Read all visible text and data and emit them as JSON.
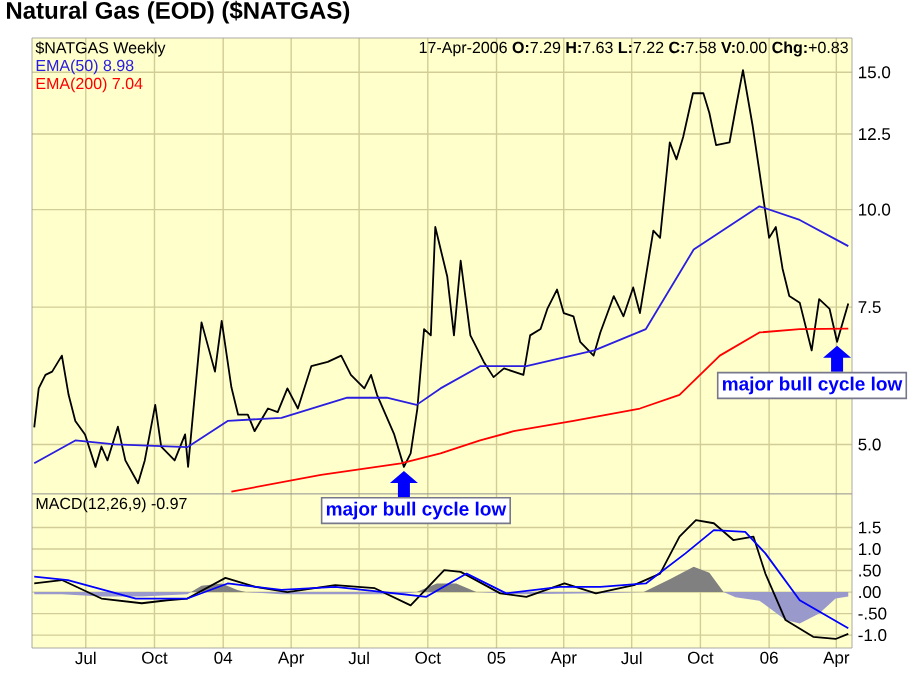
{
  "chart_data": [
    {
      "type": "line",
      "title": "Natural Gas (EOD) ($NATGAS)",
      "log": "y",
      "grid": true,
      "legend": "top left",
      "marker": "none",
      "line_style": "solid",
      "tick_labels": "y",
      "xlim": [
        "2003-04-20",
        "2006-04-22"
      ],
      "ylim": [
        4.32,
        16.6
      ],
      "xticks": [
        {
          "value": "2003-07-01",
          "label": null
        },
        {
          "value": "2003-10-01",
          "label": null
        },
        {
          "value": "2004-01-01",
          "label": null
        },
        {
          "value": "2004-04-01",
          "label": null
        },
        {
          "value": "2004-07-01",
          "label": null
        },
        {
          "value": "2004-10-01",
          "label": null
        },
        {
          "value": "2005-01-01",
          "label": null
        },
        {
          "value": "2005-04-01",
          "label": null
        },
        {
          "value": "2005-07-01",
          "label": null
        },
        {
          "value": "2005-10-01",
          "label": null
        },
        {
          "value": "2006-01-01",
          "label": null
        },
        {
          "value": "2006-04-01",
          "label": null
        }
      ],
      "yticks": [
        {
          "value": 5,
          "label": "5.0"
        },
        {
          "value": 7.5,
          "label": "7.5"
        },
        {
          "value": 10,
          "label": "10.0"
        },
        {
          "value": 12.5,
          "label": "12.5"
        },
        {
          "value": 15,
          "label": "15.0"
        }
      ],
      "annotations": [
        "17-Apr-2006 **O:**7.29 **H:**7.63 **L:**7.22 **C:**7.58 **V:**0.00 **Chg:**+0.83",
        {
          "text": "major bull cycle low",
          "x": "2004-08-30",
          "y": 4.68
        },
        {
          "text": "major bull cycle low",
          "x": "2006-04-02",
          "y": 6.77
        }
      ],
      "series": [
        {
          "name": "$NATGAS Weekly",
          "color": "#000000",
          "x": [
            "2003-04-23",
            "2003-04-29",
            "2003-05-08",
            "2003-05-17",
            "2003-05-30",
            "2003-06-08",
            "2003-06-17",
            "2003-06-30",
            "2003-07-14",
            "2003-07-22",
            "2003-07-30",
            "2003-08-13",
            "2003-08-23",
            "2003-09-09",
            "2003-09-18",
            "2003-10-02",
            "2003-10-10",
            "2003-10-28",
            "2003-11-11",
            "2003-11-15",
            "2003-12-03",
            "2003-12-21",
            "2003-12-30",
            "2004-01-12",
            "2004-01-21",
            "2004-02-03",
            "2004-02-12",
            "2004-03-01",
            "2004-03-14",
            "2004-03-27",
            "2004-04-10",
            "2004-04-28",
            "2004-05-20",
            "2004-06-07",
            "2004-06-20",
            "2004-07-08",
            "2004-07-17",
            "2004-07-25",
            "2004-08-17",
            "2004-08-30",
            "2004-09-08",
            "2004-09-17",
            "2004-09-26",
            "2004-10-05",
            "2004-10-11",
            "2004-10-27",
            "2004-11-05",
            "2004-11-14",
            "2004-11-27",
            "2004-12-15",
            "2004-12-28",
            "2005-01-11",
            "2005-02-06",
            "2005-02-15",
            "2005-03-01",
            "2005-03-10",
            "2005-03-23",
            "2005-04-01",
            "2005-04-14",
            "2005-04-23",
            "2005-05-11",
            "2005-05-20",
            "2005-06-07",
            "2005-06-20",
            "2005-07-03",
            "2005-07-12",
            "2005-07-30",
            "2005-08-08",
            "2005-08-21",
            "2005-08-30",
            "2005-09-08",
            "2005-09-21",
            "2005-10-05",
            "2005-10-13",
            "2005-10-22",
            "2005-11-09",
            "2005-11-18",
            "2005-11-27",
            "2005-12-10",
            "2005-12-19",
            "2006-01-01",
            "2006-01-10",
            "2006-01-19",
            "2006-01-28",
            "2006-02-11",
            "2006-02-27",
            "2006-03-09",
            "2006-03-23",
            "2006-04-02",
            "2006-04-17"
          ],
          "values": [
            5.26,
            5.9,
            6.14,
            6.2,
            6.5,
            5.79,
            5.36,
            5.15,
            4.68,
            4.97,
            4.77,
            5.27,
            4.77,
            4.46,
            4.77,
            5.62,
            4.97,
            4.77,
            5.15,
            4.68,
            7.17,
            6.2,
            7.2,
            5.92,
            5.46,
            5.46,
            5.2,
            5.56,
            5.5,
            5.9,
            5.56,
            6.3,
            6.38,
            6.5,
            6.14,
            5.9,
            6.14,
            5.79,
            5.15,
            4.68,
            4.87,
            5.56,
            7.03,
            6.9,
            9.5,
            8.21,
            6.9,
            8.6,
            6.9,
            6.38,
            6.1,
            6.26,
            6.14,
            6.9,
            7.03,
            7.46,
            7.9,
            7.37,
            7.3,
            6.77,
            6.5,
            6.96,
            7.75,
            7.3,
            7.95,
            7.37,
            9.4,
            9.2,
            12.2,
            11.6,
            12.4,
            14.1,
            14.1,
            13.3,
            12.1,
            12.2,
            13.6,
            15.1,
            12.8,
            11.2,
            9.2,
            9.5,
            8.4,
            7.75,
            7.6,
            6.6,
            7.68,
            7.46,
            6.77,
            7.58
          ]
        },
        {
          "name": "EMA(50) 8.98",
          "color": "#2a1ee0",
          "x": [
            "2003-04-23",
            "2003-06-17",
            "2003-08-09",
            "2003-11-14",
            "2004-01-07",
            "2004-03-19",
            "2004-06-15",
            "2004-08-07",
            "2004-09-16",
            "2004-10-18",
            "2004-12-10",
            "2005-02-10",
            "2005-05-12",
            "2005-07-20",
            "2005-09-22",
            "2005-12-19",
            "2006-02-11",
            "2006-04-17"
          ],
          "values": [
            4.73,
            5.06,
            5.0,
            4.96,
            5.36,
            5.41,
            5.74,
            5.74,
            5.62,
            5.9,
            6.3,
            6.3,
            6.6,
            7.03,
            8.89,
            10.1,
            9.7,
            8.98
          ]
        },
        {
          "name": "EMA(200) 7.04",
          "color": "#ff0000",
          "x": [
            "2004-01-12",
            "2004-05-11",
            "2004-08-26",
            "2004-10-18",
            "2004-12-10",
            "2005-01-24",
            "2005-04-14",
            "2005-07-12",
            "2005-09-03",
            "2005-10-27",
            "2005-12-19",
            "2006-02-11",
            "2006-04-17"
          ],
          "values": [
            4.35,
            4.57,
            4.73,
            4.87,
            5.06,
            5.2,
            5.36,
            5.56,
            5.79,
            6.5,
            6.96,
            7.03,
            7.04
          ]
        }
      ]
    },
    {
      "type": "line",
      "grid": true,
      "legend": "top left",
      "marker": "none",
      "line_style": "solid",
      "xlim": [
        "2003-04-20",
        "2006-04-22"
      ],
      "ylim": [
        -1.3,
        2.28
      ],
      "xticks": [
        {
          "value": "2003-07-01",
          "label": "Jul"
        },
        {
          "value": "2003-10-01",
          "label": "Oct"
        },
        {
          "value": "2004-01-01",
          "label": "04"
        },
        {
          "value": "2004-04-01",
          "label": "Apr"
        },
        {
          "value": "2004-07-01",
          "label": "Jul"
        },
        {
          "value": "2004-10-01",
          "label": "Oct"
        },
        {
          "value": "2005-01-01",
          "label": "05"
        },
        {
          "value": "2005-04-01",
          "label": "Apr"
        },
        {
          "value": "2005-07-01",
          "label": "Jul"
        },
        {
          "value": "2005-10-01",
          "label": "Oct"
        },
        {
          "value": "2006-01-01",
          "label": "06"
        },
        {
          "value": "2006-04-01",
          "label": "Apr"
        }
      ],
      "yticks": [
        {
          "value": -1,
          "label": "-1.0"
        },
        {
          "value": -0.5,
          "label": "-.50"
        },
        {
          "value": 0,
          "label": ".00"
        },
        {
          "value": 0.5,
          "label": ".50"
        },
        {
          "value": 1,
          "label": "1.0"
        },
        {
          "value": 1.5,
          "label": "1.5"
        }
      ],
      "series": [
        {
          "type": "area",
          "color": "#808080",
          "x": [
            "2003-11-19",
            "2003-12-03",
            "2003-12-30",
            "2004-01-20",
            "2004-01-31",
            "2004-09-16",
            "2004-10-13",
            "2004-11-08",
            "2004-12-05",
            "2005-07-17",
            "2005-08-21",
            "2005-09-22",
            "2005-10-13",
            "2005-11-01"
          ],
          "values": [
            0,
            0.15,
            0.2,
            0.05,
            0,
            0,
            0.2,
            0.2,
            0,
            0,
            0.3,
            0.59,
            0.45,
            0
          ]
        },
        {
          "type": "area",
          "color": "#9999cc",
          "x": [
            "2003-04-23",
            "2003-05-30",
            "2003-07-22",
            "2003-09-14",
            "2003-11-14",
            "2003-11-19",
            "2004-01-31",
            "2004-03-19",
            "2004-08-26",
            "2004-09-16",
            "2004-12-05",
            "2005-02-02",
            "2005-05-20",
            "2005-07-17",
            "2005-11-01",
            "2005-11-17",
            "2005-12-19",
            "2006-01-23",
            "2006-02-11",
            "2006-03-09",
            "2006-03-31",
            "2006-04-17"
          ],
          "values": [
            -0.05,
            -0.05,
            -0.1,
            -0.1,
            -0.05,
            0,
            0,
            -0.05,
            -0.05,
            0,
            0,
            -0.05,
            -0.03,
            0,
            0,
            -0.12,
            -0.2,
            -0.65,
            -0.73,
            -0.5,
            -0.15,
            -0.1
          ]
        },
        {
          "name": "MACD(12,26,9) -0.97",
          "color": "#000000",
          "x": [
            "2003-04-23",
            "2003-05-30",
            "2003-07-22",
            "2003-09-14",
            "2003-10-18",
            "2003-11-14",
            "2004-01-04",
            "2004-02-13",
            "2004-03-27",
            "2004-05-30",
            "2004-07-22",
            "2004-09-08",
            "2004-10-23",
            "2004-11-14",
            "2005-01-06",
            "2005-02-10",
            "2005-04-02",
            "2005-05-14",
            "2005-07-04",
            "2005-08-08",
            "2005-09-03",
            "2005-09-25",
            "2005-10-19",
            "2005-11-14",
            "2005-12-11",
            "2005-12-27",
            "2006-01-23",
            "2006-03-01",
            "2006-03-31",
            "2006-04-17"
          ],
          "values": [
            0.2,
            0.28,
            -0.15,
            -0.26,
            -0.19,
            -0.15,
            0.33,
            0.12,
            0.0,
            0.16,
            0.09,
            -0.31,
            0.51,
            0.47,
            -0.03,
            -0.11,
            0.2,
            -0.03,
            0.16,
            0.43,
            1.29,
            1.67,
            1.6,
            1.21,
            1.29,
            0.43,
            -0.65,
            -1.04,
            -1.09,
            -0.97
          ]
        },
        {
          "color": "#0000ff",
          "x": [
            "2003-04-23",
            "2003-06-07",
            "2003-09-06",
            "2003-11-14",
            "2004-01-07",
            "2004-03-19",
            "2004-05-30",
            "2004-08-18",
            "2004-09-29",
            "2004-11-22",
            "2005-01-14",
            "2005-03-27",
            "2005-05-20",
            "2005-07-20",
            "2005-09-11",
            "2005-10-19",
            "2005-11-30",
            "2005-12-27",
            "2006-02-11",
            "2006-04-17"
          ],
          "values": [
            0.36,
            0.28,
            -0.15,
            -0.15,
            0.2,
            0.05,
            0.12,
            -0.03,
            -0.11,
            0.43,
            -0.03,
            0.12,
            0.12,
            0.2,
            0.9,
            1.44,
            1.4,
            0.9,
            -0.19,
            -0.84
          ]
        }
      ]
    }
  ]
}
